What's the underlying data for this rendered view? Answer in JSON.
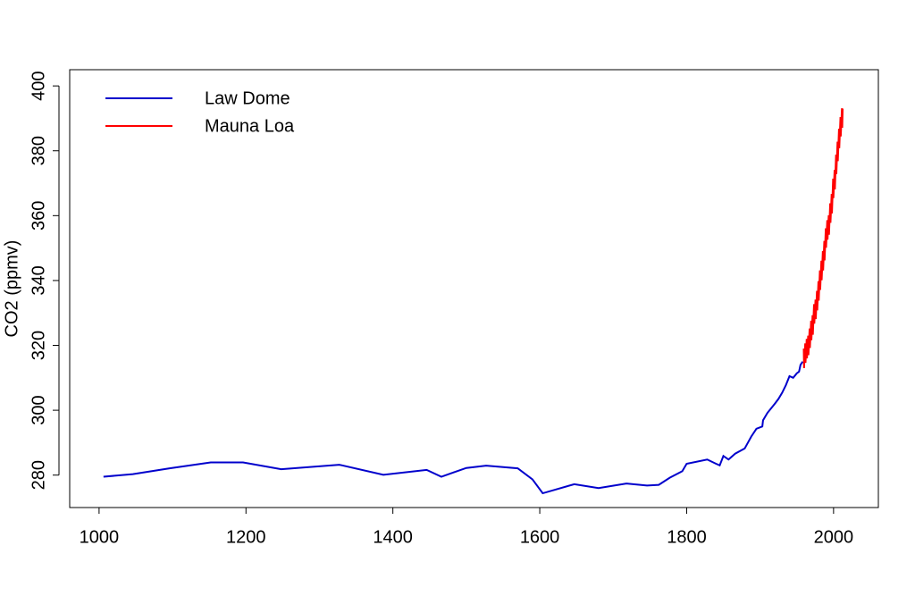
{
  "chart_data": {
    "type": "line",
    "y_label": "CO2 (ppmv)",
    "xlim": [
      960,
      2061
    ],
    "xticks": [
      1000,
      1200,
      1400,
      1600,
      1800,
      2000
    ],
    "ylim": [
      270,
      405
    ],
    "yticks": [
      280,
      300,
      320,
      340,
      360,
      380,
      400
    ],
    "grid": false,
    "legend": "top-left",
    "series": [
      {
        "name": "Law Dome",
        "color": "#0000cc",
        "x": [
          1006,
          1046,
          1096,
          1152,
          1196,
          1248,
          1327,
          1387,
          1446,
          1466,
          1500,
          1527,
          1570,
          1590,
          1604,
          1647,
          1680,
          1718,
          1746,
          1762,
          1777,
          1794,
          1800,
          1828,
          1840,
          1845,
          1850,
          1857,
          1866,
          1879,
          1888,
          1895,
          1903,
          1904,
          1910,
          1920,
          1925,
          1930,
          1935,
          1940,
          1945,
          1950,
          1953,
          1955,
          1958
        ],
        "values": [
          279.5,
          280.3,
          282.1,
          283.9,
          283.9,
          281.8,
          283.2,
          280.1,
          281.6,
          279.5,
          282.2,
          282.9,
          282.1,
          278.7,
          274.4,
          277.2,
          276.0,
          277.4,
          276.8,
          277.0,
          279.2,
          281.2,
          283.5,
          284.8,
          283.5,
          283.0,
          285.9,
          284.8,
          286.6,
          288.2,
          291.9,
          294.3,
          295.0,
          296.9,
          299.2,
          302.0,
          303.5,
          305.4,
          307.7,
          310.5,
          310.0,
          311.4,
          311.9,
          314.0,
          315.0
        ]
      },
      {
        "name": "Mauna Loa",
        "color": "#ff0000",
        "x": [
          1959.4,
          1959.8,
          1961.4,
          1961.8,
          1963.4,
          1963.8,
          1965.4,
          1965.8,
          1967.4,
          1967.8,
          1969.4,
          1969.8,
          1971.4,
          1971.8,
          1973.4,
          1973.8,
          1975.4,
          1975.8,
          1977.4,
          1977.8,
          1979.4,
          1979.8,
          1981.4,
          1981.8,
          1983.4,
          1983.8,
          1985.4,
          1985.8,
          1987.4,
          1987.8,
          1989.4,
          1989.8,
          1991.4,
          1991.8,
          1993.4,
          1993.8,
          1995.4,
          1995.8,
          1997.4,
          1997.8,
          1999.4,
          1999.8,
          2001.4,
          2001.8,
          2003.4,
          2003.8,
          2005.4,
          2005.8,
          2007.4,
          2007.8,
          2009.4,
          2009.8,
          2011.4,
          2011.8,
          2012.4
        ],
        "values": [
          319.0,
          313.0,
          320.6,
          314.6,
          322.0,
          316.0,
          323.0,
          317.0,
          325.2,
          319.2,
          327.6,
          321.6,
          329.3,
          323.3,
          332.7,
          326.7,
          334.1,
          328.1,
          336.8,
          330.8,
          339.8,
          333.8,
          343.1,
          337.1,
          346.1,
          340.1,
          349.1,
          343.1,
          352.2,
          346.2,
          356.1,
          350.1,
          358.6,
          352.6,
          360.1,
          354.1,
          363.8,
          357.8,
          366.7,
          360.7,
          371.4,
          365.4,
          374.1,
          368.1,
          378.8,
          372.8,
          382.8,
          376.8,
          386.8,
          380.8,
          390.4,
          384.4,
          393.1,
          387.1,
          393.0
        ]
      }
    ]
  }
}
